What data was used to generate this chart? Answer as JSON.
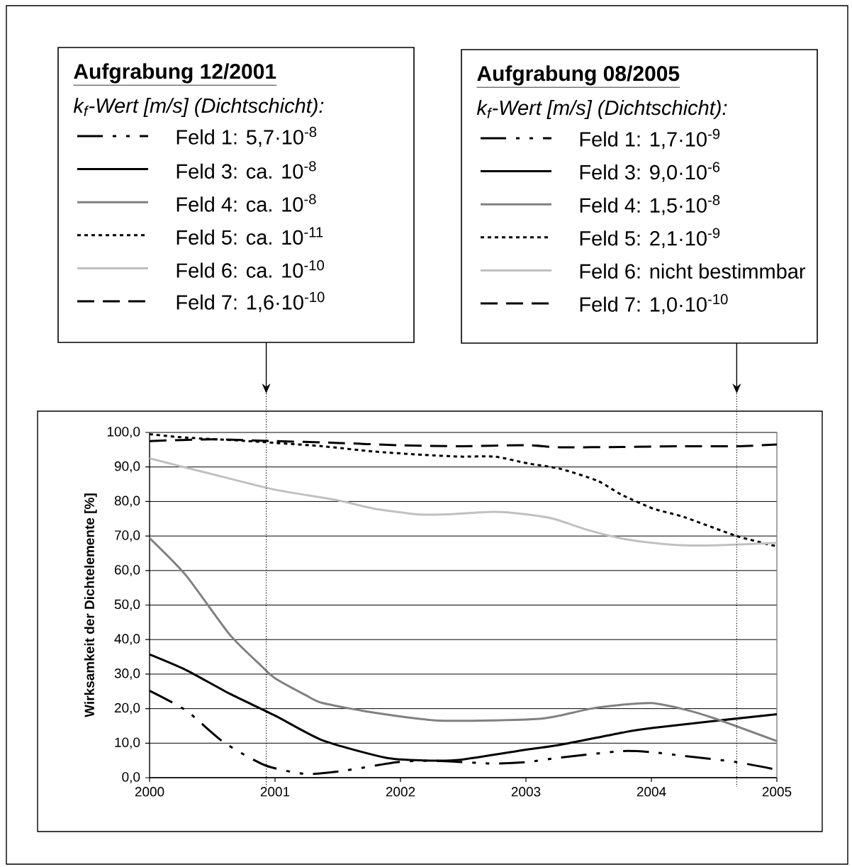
{
  "chart_data": {
    "type": "line",
    "ylabel": "Wirksamkeit der Dichtelemente [%]",
    "legend_title": "k$_{f}$-Wert [m/s] (Dichtschicht):",
    "legend": "top",
    "grid": "y",
    "xlim": [
      2000,
      2005
    ],
    "xticks": [
      2000,
      2001,
      2002,
      2003,
      2004,
      2005
    ],
    "ylim": [
      0,
      100
    ],
    "yticks": [
      {
        "value": 0,
        "label": "0,0"
      },
      {
        "value": 10,
        "label": "10,0"
      },
      {
        "value": 20,
        "label": "20,0"
      },
      {
        "value": 30,
        "label": "30,0"
      },
      {
        "value": 40,
        "label": "40,0"
      },
      {
        "value": 50,
        "label": "50,0"
      },
      {
        "value": 60,
        "label": "60,0"
      },
      {
        "value": 70,
        "label": "70,0"
      },
      {
        "value": 80,
        "label": "80,0"
      },
      {
        "value": 90,
        "label": "90,0"
      },
      {
        "value": 100,
        "label": "100,0"
      }
    ],
    "ref_lines": [
      {
        "axis": "x",
        "value": 2000.93,
        "color": "#000000",
        "line_style": "dotted"
      },
      {
        "axis": "x",
        "value": 2004.68,
        "color": "#000000",
        "line_style": "dotted"
      }
    ],
    "annotations": [
      "Aufgrabung 12/2001",
      "Aufgrabung 08/2005",
      "k$_{f}$-Wert [m/s] (Dichtschicht):",
      "Feld 1: 1,7·10$^{-9}$",
      "Feld 3: 9,0·10$^{-6}$",
      "Feld 4: 1,5·10$^{-8}$",
      "Feld 5: 2,1·10$^{-9}$",
      "Feld 6: nicht bestimmbar",
      "Feld 7: 1,0·10$^{-10}$"
    ],
    "series": [
      {
        "name": "Feld 1: 5,7·10$^{-8}$",
        "color": "#000000",
        "line_style": "dashdotdot",
        "x": [
          2000,
          2000.29,
          2000.59,
          2000.92,
          2001.24,
          2001.51,
          2001.98,
          2002.28,
          2002.72,
          2003.0,
          2003.27,
          2003.76,
          2004.0,
          2004.26,
          2004.68,
          2005
        ],
        "values": [
          25.2,
          19.5,
          10.3,
          3.6,
          1.1,
          1.8,
          4.5,
          4.9,
          4.1,
          4.5,
          5.8,
          7.7,
          7.4,
          6.3,
          4.5,
          2.3
        ]
      },
      {
        "name": "Feld 3: ca. 10$^{-8}$",
        "color": "#000000",
        "line_style": "solid",
        "x": [
          2000,
          2000.29,
          2000.64,
          2001.0,
          2001.38,
          2001.88,
          2002.18,
          2002.48,
          2003.0,
          2003.27,
          2003.76,
          2004.0,
          2005
        ],
        "values": [
          35.7,
          31.2,
          24.3,
          18,
          10.8,
          5.8,
          5,
          5.2,
          8.1,
          9.5,
          13,
          14.4,
          18.4
        ]
      },
      {
        "name": "Feld 4: ca. 10$^{-8}$",
        "color": "#808080",
        "line_style": "solid",
        "x": [
          2000,
          2000.29,
          2000.64,
          2000.89,
          2001.0,
          2001.25,
          2001.38,
          2001.78,
          2002.28,
          2002.75,
          2003.12,
          2003.27,
          2003.52,
          2003.76,
          2004.0,
          2004.26,
          2004.51,
          2005
        ],
        "values": [
          69.4,
          58.6,
          41.4,
          32.4,
          28.8,
          23.8,
          21.6,
          18.9,
          16.6,
          16.6,
          17.1,
          18,
          20,
          21.1,
          21.6,
          19.8,
          17.1,
          10.6
        ]
      },
      {
        "name": "Feld 5: ca. 10$^{-11}$",
        "color": "#000000",
        "line_style": "dotted",
        "x": [
          2000,
          2000.29,
          2000.79,
          2000.99,
          2001.38,
          2001.78,
          2002.18,
          2002.48,
          2002.75,
          2003.02,
          2003.27,
          2003.57,
          2003.76,
          2004.01,
          2004.26,
          2004.68,
          2005
        ],
        "values": [
          99.5,
          98.5,
          97.5,
          97,
          96,
          94.5,
          93.5,
          93,
          93,
          91,
          89.5,
          86,
          82,
          78,
          75.5,
          70,
          67
        ]
      },
      {
        "name": "Feld 6: ca. 10$^{-10}$",
        "color": "#c0c0c0",
        "line_style": "solid",
        "x": [
          2000,
          2000.49,
          2000.99,
          2001.48,
          2001.78,
          2002.13,
          2002.38,
          2002.75,
          2003.0,
          2003.22,
          2003.47,
          2003.76,
          2004.01,
          2004.26,
          2004.51,
          2005
        ],
        "values": [
          92.5,
          88,
          83.5,
          80.5,
          78,
          76.3,
          76.3,
          77,
          76.3,
          75,
          72,
          69.3,
          68,
          67.3,
          67.3,
          68
        ]
      },
      {
        "name": "Feld 7: 1,6·10$^{-10}$",
        "color": "#000000",
        "line_style": "dashed",
        "x": [
          2000,
          2000.49,
          2000.99,
          2001.48,
          2001.98,
          2002.48,
          2003.0,
          2003.27,
          2003.76,
          2004.26,
          2004.68,
          2005
        ],
        "values": [
          97.5,
          98,
          97.5,
          97,
          96.3,
          96,
          96.3,
          95.7,
          95.8,
          96,
          96,
          96.5
        ]
      }
    ]
  }
}
